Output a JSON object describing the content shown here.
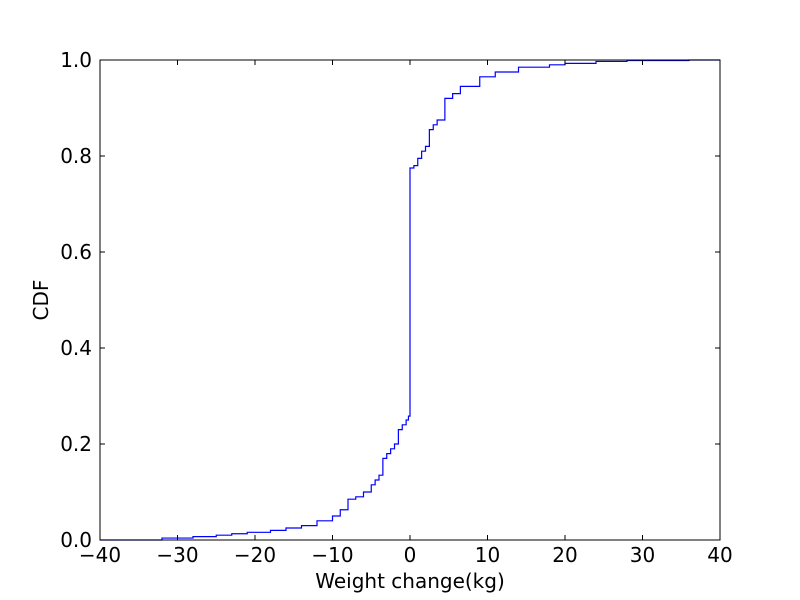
{
  "chart_data": {
    "type": "line",
    "step": true,
    "xlabel": "Weight change(kg)",
    "ylabel": "CDF",
    "xlim": [
      -40,
      40
    ],
    "ylim": [
      0.0,
      1.0
    ],
    "grid": false,
    "x_ticks": [
      -40,
      -30,
      -20,
      -10,
      0,
      10,
      20,
      30,
      40
    ],
    "x_tick_labels": [
      "−40",
      "−30",
      "−20",
      "−10",
      "0",
      "10",
      "20",
      "30",
      "40"
    ],
    "y_ticks": [
      0.0,
      0.2,
      0.4,
      0.6,
      0.8,
      1.0
    ],
    "y_tick_labels": [
      "0.0",
      "0.2",
      "0.4",
      "0.6",
      "0.8",
      "1.0"
    ],
    "series": [
      {
        "color": "#0000ff",
        "x": [
          -40,
          -32,
          -28,
          -25,
          -23,
          -21,
          -18,
          -16,
          -14,
          -12,
          -10,
          -9,
          -8,
          -7,
          -6,
          -5,
          -4.5,
          -4,
          -3.5,
          -3,
          -2.5,
          -2,
          -1.5,
          -1,
          -0.5,
          -0.2,
          0,
          0.5,
          1,
          1.5,
          2,
          2.5,
          3,
          3.5,
          4.5,
          5.5,
          6.5,
          9,
          11,
          14,
          18,
          20,
          24,
          28,
          36
        ],
        "y": [
          0.0,
          0.004,
          0.007,
          0.01,
          0.013,
          0.016,
          0.02,
          0.025,
          0.03,
          0.04,
          0.05,
          0.063,
          0.085,
          0.09,
          0.1,
          0.115,
          0.125,
          0.135,
          0.17,
          0.18,
          0.19,
          0.2,
          0.23,
          0.24,
          0.25,
          0.258,
          0.775,
          0.78,
          0.795,
          0.81,
          0.82,
          0.855,
          0.865,
          0.875,
          0.92,
          0.93,
          0.945,
          0.965,
          0.975,
          0.985,
          0.99,
          0.993,
          0.997,
          0.999,
          1.0
        ]
      }
    ]
  }
}
